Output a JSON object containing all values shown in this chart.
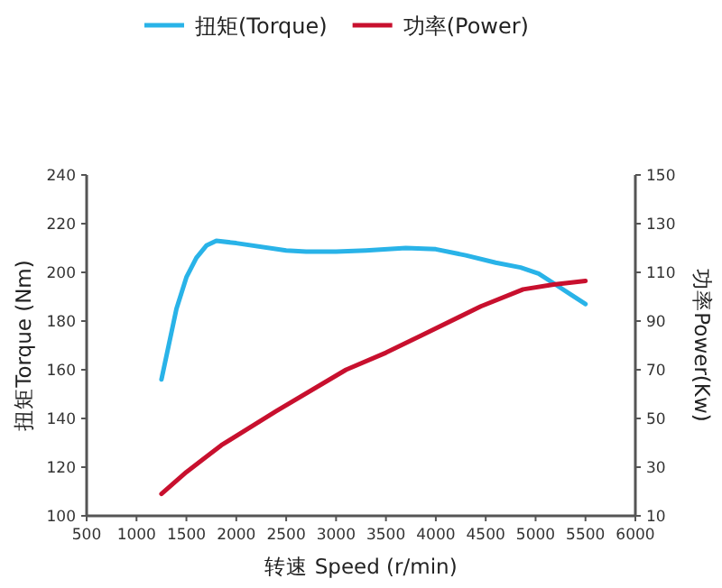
{
  "chart_data": {
    "type": "line",
    "xlabel": "转速 Speed (r/min)",
    "ylabel": "扭矩Torque (Nm)",
    "y2label": "功率Power(Kw)",
    "xlim": [
      500,
      6000
    ],
    "xticks": [
      500,
      1000,
      1500,
      2000,
      2500,
      3000,
      3500,
      4000,
      4500,
      5000,
      5500,
      6000
    ],
    "ylim": [
      100,
      240
    ],
    "yticks": [
      100,
      120,
      140,
      160,
      180,
      200,
      220,
      240
    ],
    "y2lim": [
      10,
      150
    ],
    "y2ticks": [
      10,
      30,
      50,
      70,
      90,
      110,
      130,
      150
    ],
    "legend": "top",
    "grid": false,
    "series": [
      {
        "name": "扭矩(Torque)",
        "color": "#29b3e8",
        "x": [
          1250,
          1400,
          1500,
          1600,
          1700,
          1800,
          2000,
          2500,
          2700,
          3000,
          3300,
          3700,
          4000,
          4300,
          4600,
          4850,
          5030,
          5200,
          5350,
          5500
        ],
        "values": [
          156,
          185,
          198,
          206,
          211,
          213,
          212,
          209,
          208.5,
          208.5,
          209,
          210,
          209.5,
          207,
          204,
          202,
          199.5,
          195,
          191,
          187
        ]
      },
      {
        "name": "功率(Power)",
        "axis": "y2",
        "color": "#c8102e",
        "x": [
          1250,
          1500,
          1850,
          2400,
          3100,
          3500,
          3850,
          4450,
          4875,
          5180,
          5500
        ],
        "values": [
          19,
          28,
          39,
          53,
          70,
          77,
          84,
          96,
          103,
          105,
          106.5
        ]
      }
    ]
  }
}
